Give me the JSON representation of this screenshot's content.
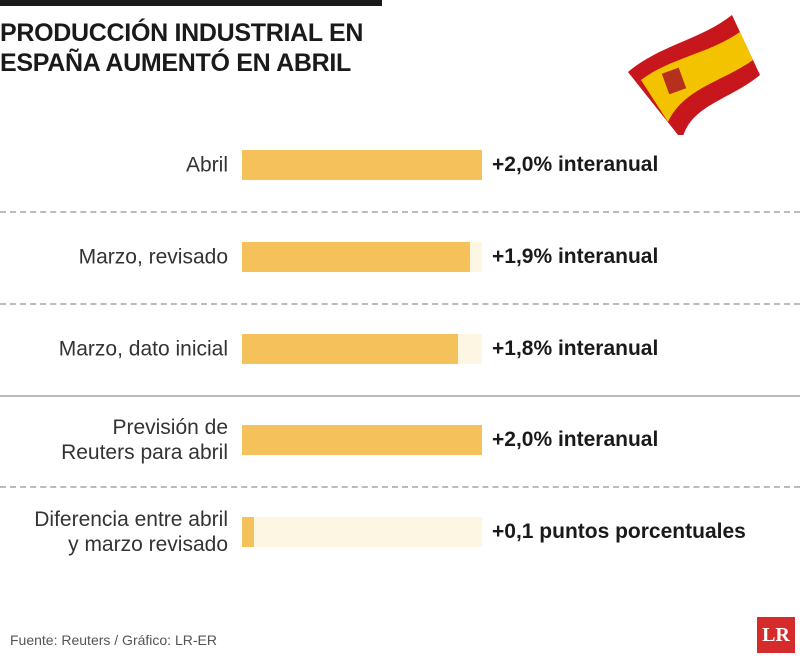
{
  "chart_data": {
    "type": "bar",
    "orientation": "horizontal",
    "title": "PRODUCCIÓN INDUSTRIAL EN\nESPAÑA AUMENTÓ EN ABRIL",
    "categories": [
      "Abril",
      "Marzo, revisado",
      "Marzo, dato inicial",
      "Previsión de\nReuters para abril",
      "Diferencia entre abril\ny marzo revisado"
    ],
    "values": [
      2.0,
      1.9,
      1.8,
      2.0,
      0.1
    ],
    "value_labels": [
      "+2,0% interanual",
      "+1,9% interanual",
      "+1,8% interanual",
      "+2,0% interanual",
      "+0,1 puntos porcentuales"
    ],
    "color": "#f5c15a"
  },
  "source": "Fuente: Reuters / Gráfico: LR-ER",
  "logo": "LR"
}
